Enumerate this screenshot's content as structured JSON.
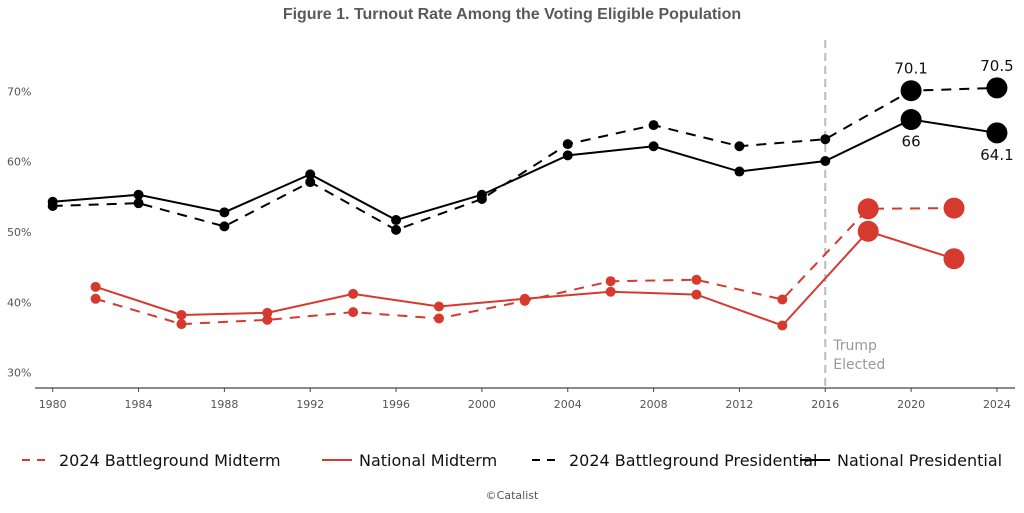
{
  "chart_data": {
    "type": "line",
    "title": "Figure 1. Turnout Rate Among the Voting Eligible Population",
    "xlabel": "",
    "ylabel": "",
    "xlim": [
      1979,
      2025
    ],
    "ylim": [
      28,
      76
    ],
    "x_ticks": [
      1980,
      1984,
      1988,
      1992,
      1996,
      2000,
      2004,
      2008,
      2012,
      2016,
      2020,
      2024
    ],
    "y_ticks": [
      30,
      40,
      50,
      60,
      70
    ],
    "y_tick_labels": [
      "30%",
      "40%",
      "50%",
      "60%",
      "70%"
    ],
    "grid": false,
    "legend_position": "bottom",
    "series": [
      {
        "name": "2024 Battleground Midterm",
        "color": "#d63a2f",
        "dash": "dashed",
        "x": [
          1982,
          1986,
          1990,
          1994,
          1998,
          2002,
          2006,
          2010,
          2014,
          2018,
          2022
        ],
        "y": [
          40.5,
          36.9,
          37.5,
          38.6,
          37.7,
          40.2,
          43.0,
          43.2,
          40.4,
          53.3,
          53.4
        ]
      },
      {
        "name": "National Midterm",
        "color": "#d63a2f",
        "dash": "solid",
        "x": [
          1982,
          1986,
          1990,
          1994,
          1998,
          2002,
          2006,
          2010,
          2014,
          2018,
          2022
        ],
        "y": [
          42.2,
          38.2,
          38.5,
          41.2,
          39.4,
          40.5,
          41.5,
          41.1,
          36.7,
          50.1,
          46.2
        ]
      },
      {
        "name": "2024 Battleground Presidential",
        "color": "#000000",
        "dash": "dashed",
        "x": [
          1980,
          1984,
          1988,
          1992,
          1996,
          2000,
          2004,
          2008,
          2012,
          2016,
          2020,
          2024
        ],
        "y": [
          53.7,
          54.1,
          50.8,
          57.1,
          50.3,
          54.7,
          62.5,
          65.2,
          62.2,
          63.2,
          70.1,
          70.5
        ]
      },
      {
        "name": "National Presidential",
        "color": "#000000",
        "dash": "solid",
        "x": [
          1980,
          1984,
          1988,
          1992,
          1996,
          2000,
          2004,
          2008,
          2012,
          2016,
          2020,
          2024
        ],
        "y": [
          54.3,
          55.3,
          52.8,
          58.2,
          51.7,
          55.3,
          60.9,
          62.2,
          58.6,
          60.1,
          66.0,
          64.1
        ]
      }
    ],
    "data_labels": [
      {
        "series": "2024 Battleground Presidential",
        "x": 2020,
        "text": "70.1",
        "position": "above"
      },
      {
        "series": "2024 Battleground Presidential",
        "x": 2024,
        "text": "70.5",
        "position": "above"
      },
      {
        "series": "National Presidential",
        "x": 2020,
        "text": "66",
        "position": "below"
      },
      {
        "series": "National Presidential",
        "x": 2024,
        "text": "64.1",
        "position": "below"
      }
    ],
    "annotations": [
      {
        "type": "vertical-line",
        "x": 2016,
        "style": "dashed",
        "color": "#bbbbbb",
        "text": [
          "Trump",
          "Elected"
        ]
      }
    ],
    "highlighted_from_year": 2018
  },
  "footer": "©Catalist"
}
